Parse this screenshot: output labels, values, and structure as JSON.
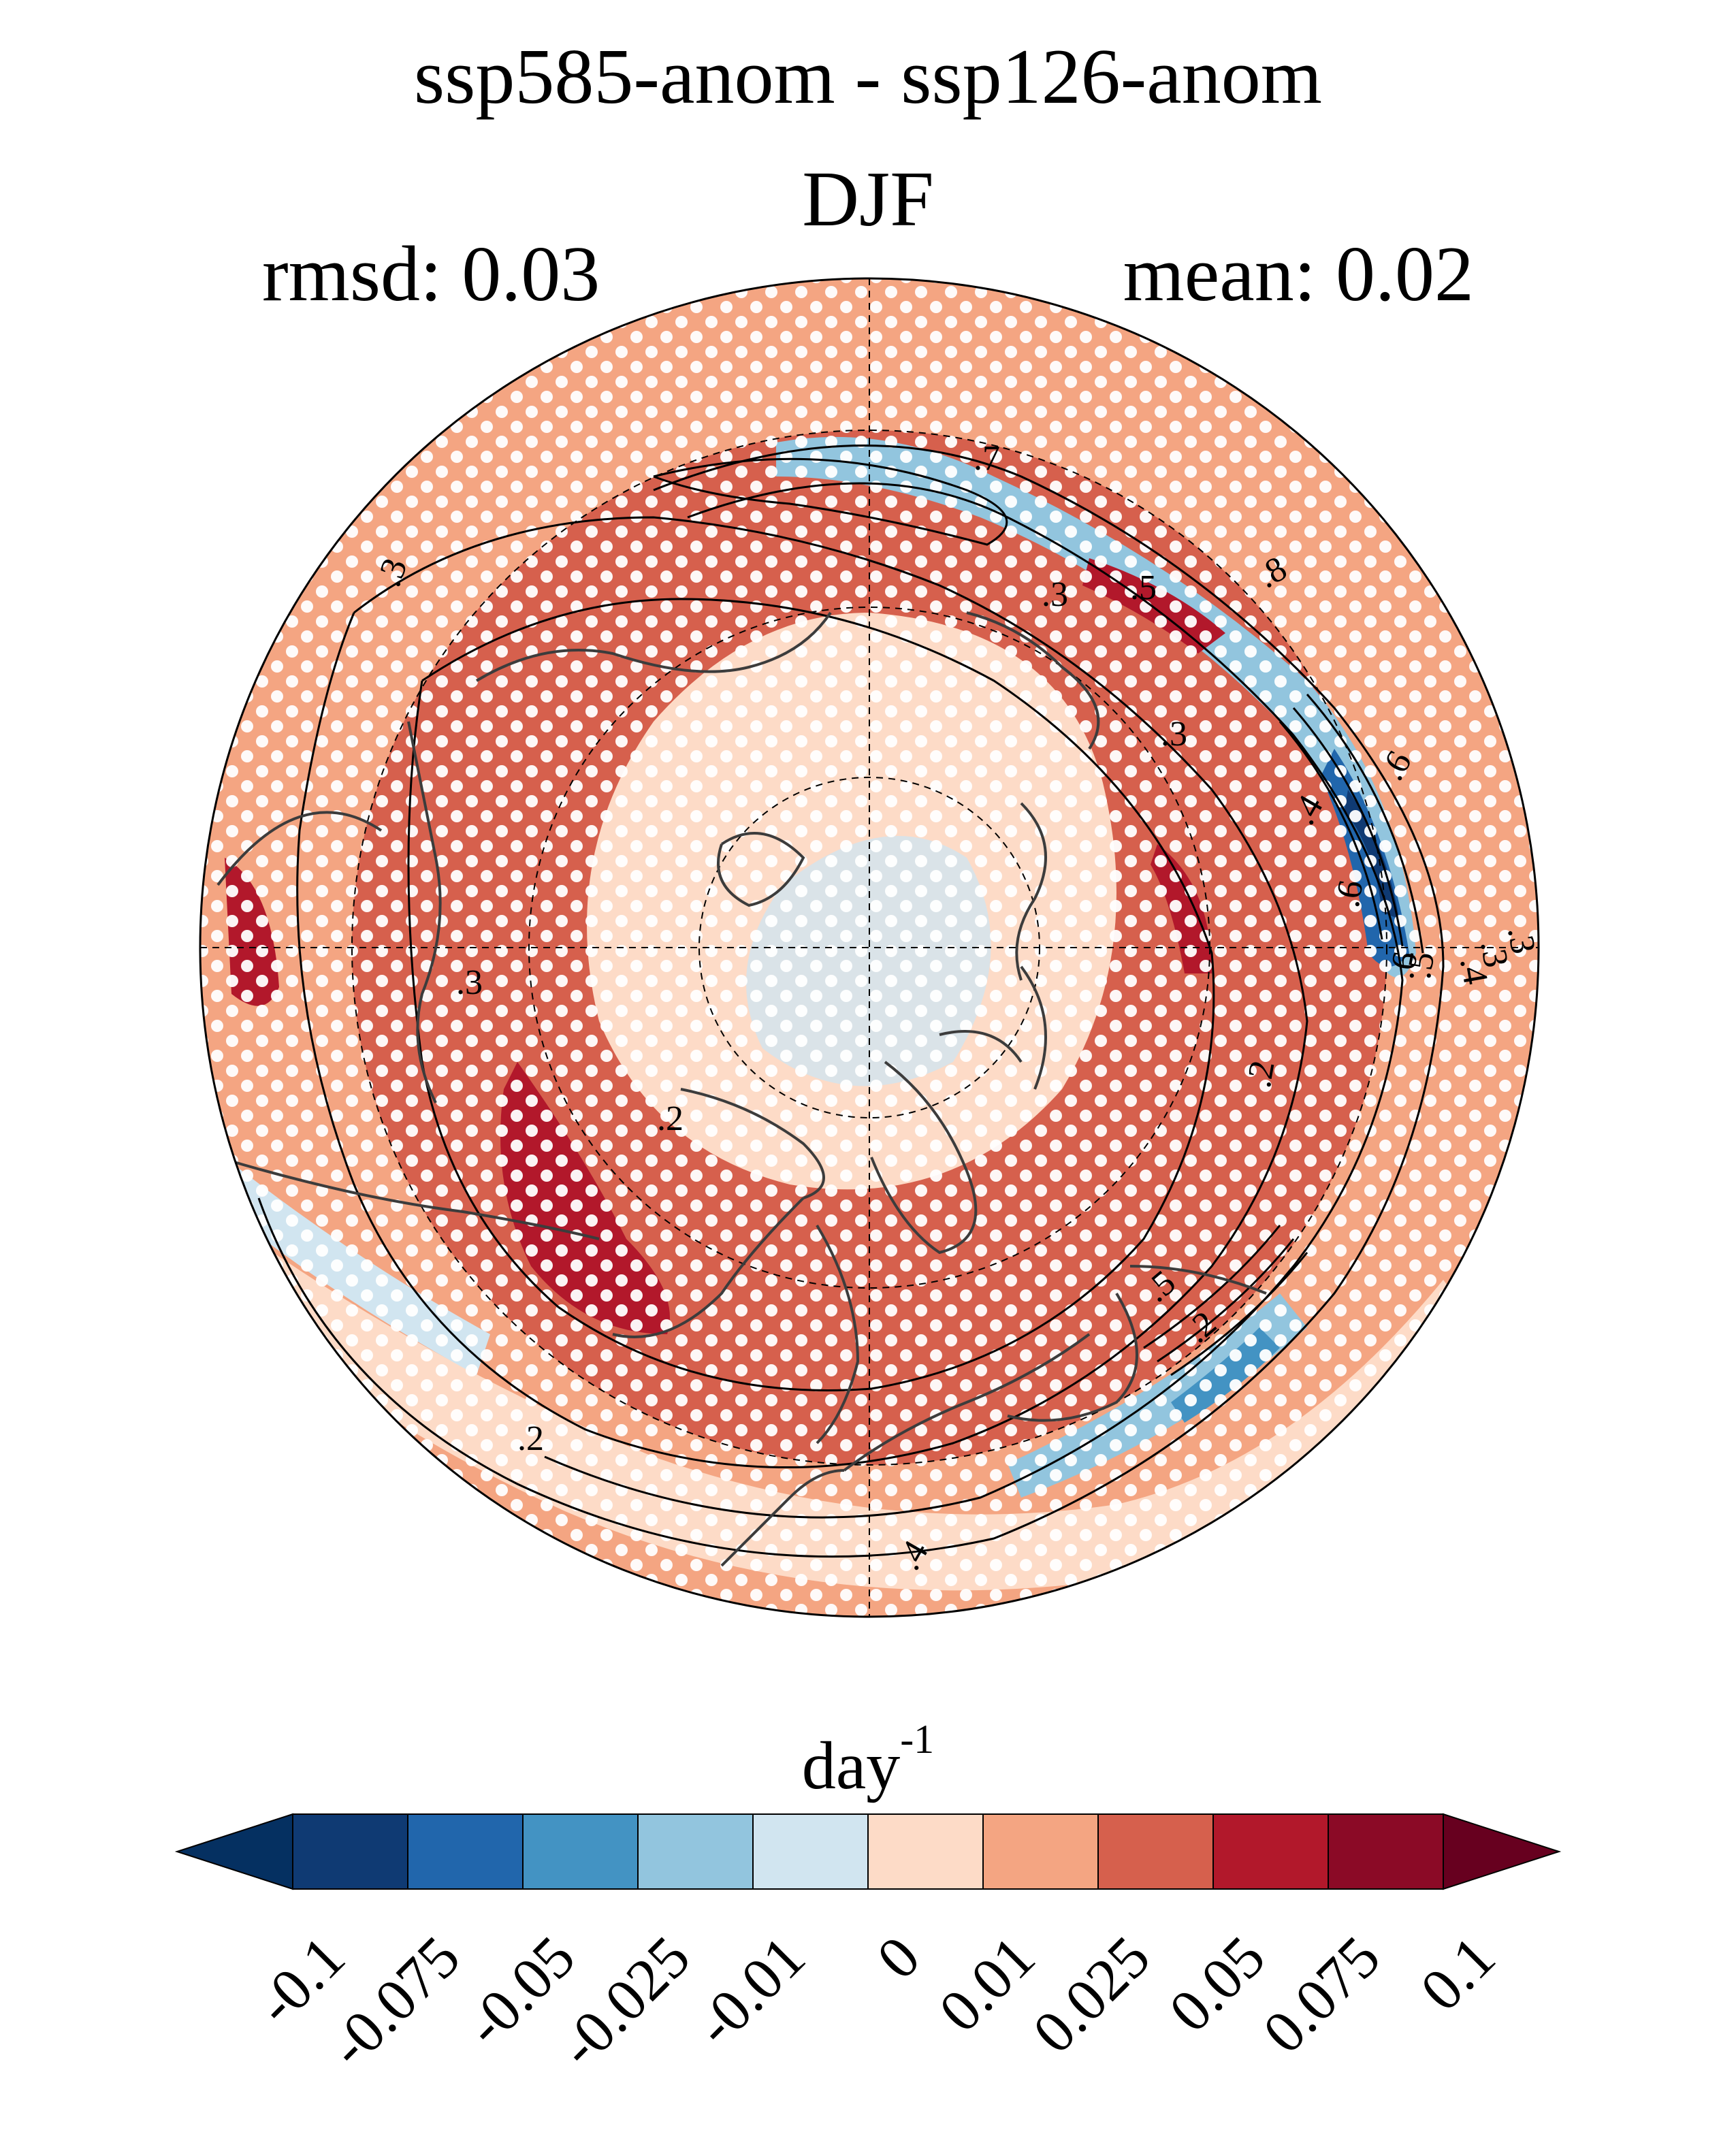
{
  "title": "ssp585-anom - ssp126-anom",
  "season": "DJF",
  "stats": {
    "rmsd_label": "rmsd: 0.03",
    "mean_label": "mean: 0.02"
  },
  "colorbar": {
    "units_base": "day",
    "units_exp": "-1",
    "levels": [
      "-0.1",
      "-0.075",
      "-0.05",
      "-0.025",
      "-0.01",
      "0",
      "0.01",
      "0.025",
      "0.05",
      "0.075",
      "0.1"
    ],
    "colors": [
      "#053061",
      "#0f3a73",
      "#2166ac",
      "#4393c3",
      "#92c5de",
      "#d1e5f0",
      "#fddbc7",
      "#f4a582",
      "#d6604d",
      "#b2182b",
      "#8b0a26",
      "#67001f"
    ]
  },
  "map": {
    "projection": "north-polar-stereographic",
    "contour_labels": [
      ".7",
      ".3",
      ".5",
      ".8",
      ".3",
      ".6",
      ".4",
      ".6",
      ".3",
      ".3",
      ".4",
      ".5",
      ".6",
      ".2",
      ".2",
      ".3",
      ".5",
      ".2",
      ".4",
      ".3",
      ".2"
    ],
    "colors": {
      "land_outline": "#3c3c3c",
      "contour": "#000000",
      "stipple": "#ffffff",
      "grid": "#000000"
    }
  }
}
